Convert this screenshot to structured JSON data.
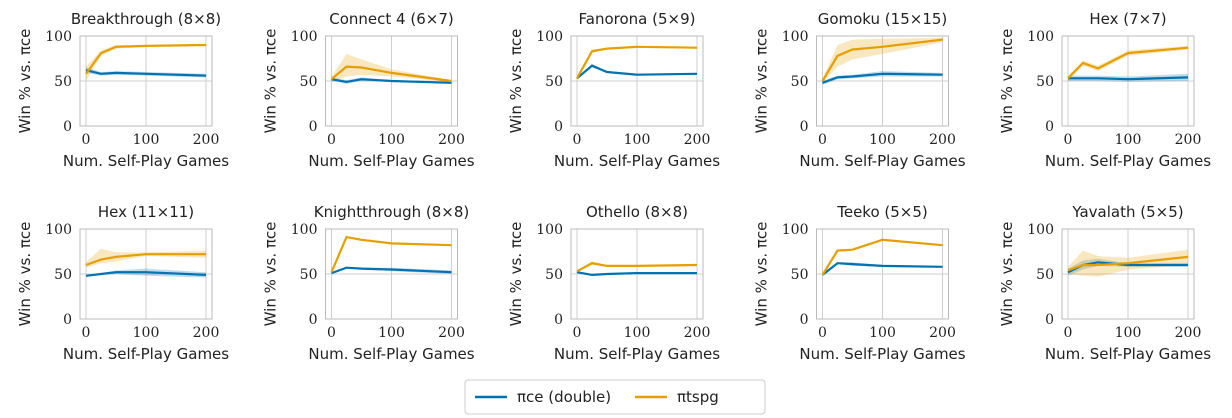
{
  "chart_data": [
    {
      "type": "line",
      "title": "Breakthrough (8×8)",
      "xlabel": "Num. Self-Play Games",
      "ylabel": "Win % vs. πce",
      "x": [
        0,
        25,
        50,
        100,
        200
      ],
      "xlim": [
        -10,
        210
      ],
      "ylim": [
        0,
        100
      ],
      "xticks": [
        0,
        100,
        200
      ],
      "yticks": [
        0,
        50,
        100
      ],
      "grid": true,
      "series": [
        {
          "color": "#0072b2",
          "values": [
            62,
            58,
            59,
            58,
            56
          ],
          "lower": [
            59,
            56,
            57,
            56,
            54
          ],
          "upper": [
            65,
            60,
            61,
            60,
            58
          ]
        },
        {
          "color": "#e69f00",
          "values": [
            58,
            81,
            88,
            89,
            90
          ],
          "lower": [
            50,
            78,
            86,
            88,
            89
          ],
          "upper": [
            66,
            84,
            90,
            90,
            91
          ]
        }
      ]
    },
    {
      "type": "line",
      "title": "Connect 4 (6×7)",
      "xlabel": "Num. Self-Play Games",
      "ylabel": "Win % vs. πce",
      "x": [
        0,
        25,
        50,
        100,
        200
      ],
      "xlim": [
        -10,
        210
      ],
      "ylim": [
        0,
        100
      ],
      "xticks": [
        0,
        100,
        200
      ],
      "yticks": [
        0,
        50,
        100
      ],
      "grid": true,
      "series": [
        {
          "color": "#0072b2",
          "values": [
            52,
            49,
            52,
            50,
            48
          ],
          "lower": [
            50,
            47,
            50,
            49,
            47
          ],
          "upper": [
            54,
            51,
            54,
            51,
            49
          ]
        },
        {
          "color": "#e69f00",
          "values": [
            52,
            66,
            65,
            59,
            50
          ],
          "lower": [
            49,
            55,
            57,
            55,
            49
          ],
          "upper": [
            55,
            80,
            74,
            63,
            51
          ]
        }
      ]
    },
    {
      "type": "line",
      "title": "Fanorona (5×9)",
      "xlabel": "Num. Self-Play Games",
      "ylabel": "Win % vs. πce",
      "x": [
        0,
        25,
        50,
        100,
        200
      ],
      "xlim": [
        -10,
        210
      ],
      "ylim": [
        0,
        100
      ],
      "xticks": [
        0,
        100,
        200
      ],
      "yticks": [
        0,
        50,
        100
      ],
      "grid": true,
      "series": [
        {
          "color": "#0072b2",
          "values": [
            53,
            67,
            60,
            57,
            58
          ],
          "lower": [
            52,
            65,
            59,
            56,
            57
          ],
          "upper": [
            54,
            69,
            61,
            58,
            59
          ]
        },
        {
          "color": "#e69f00",
          "values": [
            53,
            83,
            86,
            88,
            87
          ],
          "lower": [
            52,
            81,
            85,
            87,
            86
          ],
          "upper": [
            54,
            85,
            87,
            89,
            88
          ]
        }
      ]
    },
    {
      "type": "line",
      "title": "Gomoku (15×15)",
      "xlabel": "Num. Self-Play Games",
      "ylabel": "Win % vs. πce",
      "x": [
        0,
        25,
        50,
        100,
        200
      ],
      "xlim": [
        -10,
        210
      ],
      "ylim": [
        0,
        100
      ],
      "xticks": [
        0,
        100,
        200
      ],
      "yticks": [
        0,
        50,
        100
      ],
      "grid": true,
      "series": [
        {
          "color": "#0072b2",
          "values": [
            48,
            54,
            55,
            58,
            57
          ],
          "lower": [
            46,
            52,
            53,
            55,
            55
          ],
          "upper": [
            50,
            56,
            57,
            61,
            59
          ]
        },
        {
          "color": "#e69f00",
          "values": [
            50,
            78,
            85,
            88,
            96
          ],
          "lower": [
            48,
            66,
            74,
            80,
            93
          ],
          "upper": [
            52,
            90,
            96,
            97,
            98
          ]
        }
      ]
    },
    {
      "type": "line",
      "title": "Hex (7×7)",
      "xlabel": "Num. Self-Play Games",
      "ylabel": "Win % vs. πce",
      "x": [
        0,
        25,
        50,
        100,
        200
      ],
      "xlim": [
        -10,
        210
      ],
      "ylim": [
        0,
        100
      ],
      "xticks": [
        0,
        100,
        200
      ],
      "yticks": [
        0,
        50,
        100
      ],
      "grid": true,
      "series": [
        {
          "color": "#0072b2",
          "values": [
            53,
            53,
            53,
            52,
            54
          ],
          "lower": [
            50,
            50,
            50,
            49,
            50
          ],
          "upper": [
            56,
            56,
            56,
            55,
            58
          ]
        },
        {
          "color": "#e69f00",
          "values": [
            53,
            70,
            64,
            81,
            87
          ],
          "lower": [
            51,
            67,
            61,
            78,
            85
          ],
          "upper": [
            55,
            73,
            67,
            84,
            89
          ]
        }
      ]
    },
    {
      "type": "line",
      "title": "Hex (11×11)",
      "xlabel": "Num. Self-Play Games",
      "ylabel": "Win % vs. πce",
      "x": [
        0,
        25,
        50,
        100,
        200
      ],
      "xlim": [
        -10,
        210
      ],
      "ylim": [
        0,
        100
      ],
      "xticks": [
        0,
        100,
        200
      ],
      "yticks": [
        0,
        50,
        100
      ],
      "grid": true,
      "series": [
        {
          "color": "#0072b2",
          "values": [
            48,
            50,
            52,
            52,
            49
          ],
          "lower": [
            47,
            49,
            50,
            48,
            46
          ],
          "upper": [
            49,
            51,
            54,
            56,
            52
          ]
        },
        {
          "color": "#e69f00",
          "values": [
            60,
            66,
            69,
            72,
            72
          ],
          "lower": [
            57,
            62,
            64,
            70,
            68
          ],
          "upper": [
            63,
            78,
            74,
            74,
            76
          ]
        }
      ]
    },
    {
      "type": "line",
      "title": "Knightthrough (8×8)",
      "xlabel": "Num. Self-Play Games",
      "ylabel": "Win % vs. πce",
      "x": [
        0,
        25,
        50,
        100,
        200
      ],
      "xlim": [
        -10,
        210
      ],
      "ylim": [
        0,
        100
      ],
      "xticks": [
        0,
        100,
        200
      ],
      "yticks": [
        0,
        50,
        100
      ],
      "grid": true,
      "series": [
        {
          "color": "#0072b2",
          "values": [
            51,
            57,
            56,
            55,
            52
          ],
          "lower": [
            50,
            56,
            55,
            53,
            50
          ],
          "upper": [
            52,
            58,
            57,
            57,
            54
          ]
        },
        {
          "color": "#e69f00",
          "values": [
            52,
            91,
            88,
            84,
            82
          ],
          "lower": [
            51,
            90,
            87,
            83,
            81
          ],
          "upper": [
            53,
            92,
            89,
            85,
            83
          ]
        }
      ]
    },
    {
      "type": "line",
      "title": "Othello (8×8)",
      "xlabel": "Num. Self-Play Games",
      "ylabel": "Win % vs. πce",
      "x": [
        0,
        25,
        50,
        100,
        200
      ],
      "xlim": [
        -10,
        210
      ],
      "ylim": [
        0,
        100
      ],
      "xticks": [
        0,
        100,
        200
      ],
      "yticks": [
        0,
        50,
        100
      ],
      "grid": true,
      "series": [
        {
          "color": "#0072b2",
          "values": [
            52,
            49,
            50,
            51,
            51
          ],
          "lower": [
            51,
            48,
            49,
            50,
            50
          ],
          "upper": [
            53,
            50,
            51,
            52,
            52
          ]
        },
        {
          "color": "#e69f00",
          "values": [
            53,
            62,
            59,
            59,
            60
          ],
          "lower": [
            52,
            60,
            58,
            58,
            59
          ],
          "upper": [
            54,
            64,
            60,
            60,
            61
          ]
        }
      ]
    },
    {
      "type": "line",
      "title": "Teeko (5×5)",
      "xlabel": "Num. Self-Play Games",
      "ylabel": "Win % vs. πce",
      "x": [
        0,
        25,
        50,
        100,
        200
      ],
      "xlim": [
        -10,
        210
      ],
      "ylim": [
        0,
        100
      ],
      "xticks": [
        0,
        100,
        200
      ],
      "yticks": [
        0,
        50,
        100
      ],
      "grid": true,
      "series": [
        {
          "color": "#0072b2",
          "values": [
            49,
            62,
            61,
            59,
            58
          ],
          "lower": [
            48,
            61,
            59,
            58,
            57
          ],
          "upper": [
            50,
            63,
            63,
            60,
            59
          ]
        },
        {
          "color": "#e69f00",
          "values": [
            49,
            76,
            77,
            88,
            82
          ],
          "lower": [
            48,
            75,
            76,
            87,
            81
          ],
          "upper": [
            50,
            77,
            78,
            89,
            83
          ]
        }
      ]
    },
    {
      "type": "line",
      "title": "Yavalath (5×5)",
      "xlabel": "Num. Self-Play Games",
      "ylabel": "Win % vs. πce",
      "x": [
        0,
        25,
        50,
        100,
        200
      ],
      "xlim": [
        -10,
        210
      ],
      "ylim": [
        0,
        100
      ],
      "xticks": [
        0,
        100,
        200
      ],
      "yticks": [
        0,
        50,
        100
      ],
      "grid": true,
      "series": [
        {
          "color": "#0072b2",
          "values": [
            52,
            60,
            63,
            60,
            60
          ],
          "lower": [
            48,
            55,
            59,
            58,
            58
          ],
          "upper": [
            56,
            65,
            67,
            62,
            62
          ]
        },
        {
          "color": "#e69f00",
          "values": [
            54,
            60,
            60,
            62,
            69
          ],
          "lower": [
            50,
            48,
            47,
            55,
            60
          ],
          "upper": [
            58,
            76,
            70,
            68,
            77
          ]
        }
      ]
    }
  ],
  "legend": [
    {
      "name": "πce (double)",
      "color": "#0072b2"
    },
    {
      "name": "πtspg",
      "color": "#e69f00"
    }
  ]
}
